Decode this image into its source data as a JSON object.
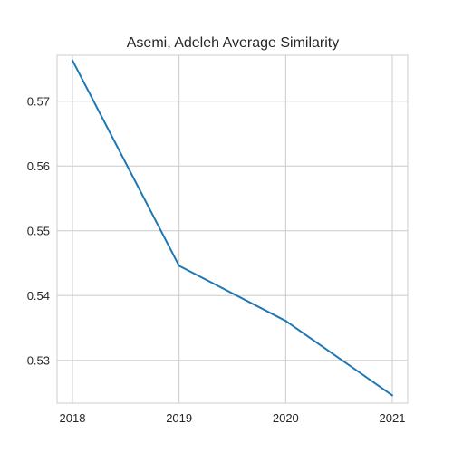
{
  "chart_data": {
    "type": "line",
    "title": "Asemi, Adeleh Average Similarity",
    "xlabel": "",
    "ylabel": "",
    "x": [
      "2018",
      "2019",
      "2020",
      "2021"
    ],
    "series": [
      {
        "values": [
          0.5763,
          0.5446,
          0.5361,
          0.5246
        ],
        "color": "#1f77b4"
      }
    ],
    "y_ticks": [
      0.53,
      0.54,
      0.55,
      0.56,
      0.57
    ],
    "y_tick_labels": [
      "0.53",
      "0.54",
      "0.55",
      "0.56",
      "0.57"
    ],
    "ylim": [
      0.5234,
      0.5771
    ],
    "grid": true,
    "legend": "none"
  }
}
